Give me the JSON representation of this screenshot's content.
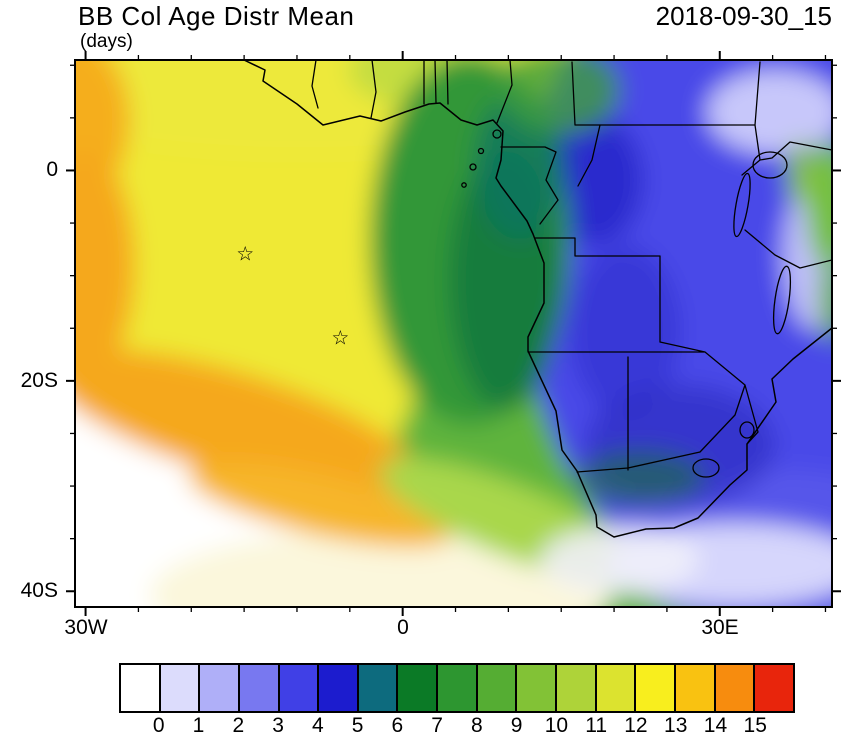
{
  "header": {
    "title": "BB Col Age Distr Mean",
    "subtitle": "(days)",
    "date": "2018-09-30_15"
  },
  "axes": {
    "y_ticks": [
      {
        "label": "0",
        "lat": 0
      },
      {
        "label": "20S",
        "lat": -20
      },
      {
        "label": "40S",
        "lat": -40
      }
    ],
    "x_ticks": [
      {
        "label": "30W",
        "lon": -30
      },
      {
        "label": "0",
        "lon": 0
      },
      {
        "label": "30E",
        "lon": 30
      }
    ]
  },
  "colorbar": {
    "labels": [
      "0",
      "1",
      "2",
      "3",
      "4",
      "5",
      "6",
      "7",
      "8",
      "9",
      "10",
      "11",
      "12",
      "13",
      "14",
      "15"
    ],
    "colors": [
      "#FFFFFF",
      "#DCDCFC",
      "#AFAFF8",
      "#7878F0",
      "#4040E6",
      "#1C1CCE",
      "#0D6B7E",
      "#0B7A26",
      "#2D9630",
      "#55AD33",
      "#82C236",
      "#AED339",
      "#DCE32F",
      "#F8EE1E",
      "#F9C211",
      "#F78C0E",
      "#E8250C"
    ]
  },
  "chart_data": {
    "type": "heatmap",
    "title": "BB Col Age Distr Mean",
    "units": "days",
    "timestamp": "2018-09-30_15",
    "x_axis": {
      "tick_labels": [
        "30W",
        "0",
        "30E"
      ],
      "range_deg_lon": [
        -31,
        41
      ]
    },
    "y_axis": {
      "tick_labels": [
        "0",
        "20S",
        "40S"
      ],
      "range_deg_lat": [
        -41.5,
        10.5
      ]
    },
    "levels": [
      0,
      1,
      2,
      3,
      4,
      5,
      6,
      7,
      8,
      9,
      10,
      11,
      12,
      13,
      14,
      15
    ],
    "palette": [
      "#FFFFFF",
      "#DCDCFC",
      "#AFAFF8",
      "#7878F0",
      "#4040E6",
      "#1C1CCE",
      "#0D6B7E",
      "#0B7A26",
      "#2D9630",
      "#55AD33",
      "#82C236",
      "#AED339",
      "#DCE32F",
      "#F8EE1E",
      "#F9C211",
      "#F78C0E",
      "#E8250C"
    ],
    "legend_position": "bottom",
    "markers": [
      {
        "symbol": "star",
        "lon_deg": -14.9,
        "lat_deg": -7.9
      },
      {
        "symbol": "star",
        "lon_deg": -5.9,
        "lat_deg": -15.9
      }
    ],
    "field_summary": "Ages 0-5 days (blues/lavender) over eastern and southern Africa and the SW Indian Ocean; 6-9 days (greens) in the central South Atlantic smoke outflow near the Angolan coast; 10-13 days (yellows) in the far western South Atlantic; 14-15 days (orange) at the western edge; below 1 day (white) in the far southwest"
  }
}
